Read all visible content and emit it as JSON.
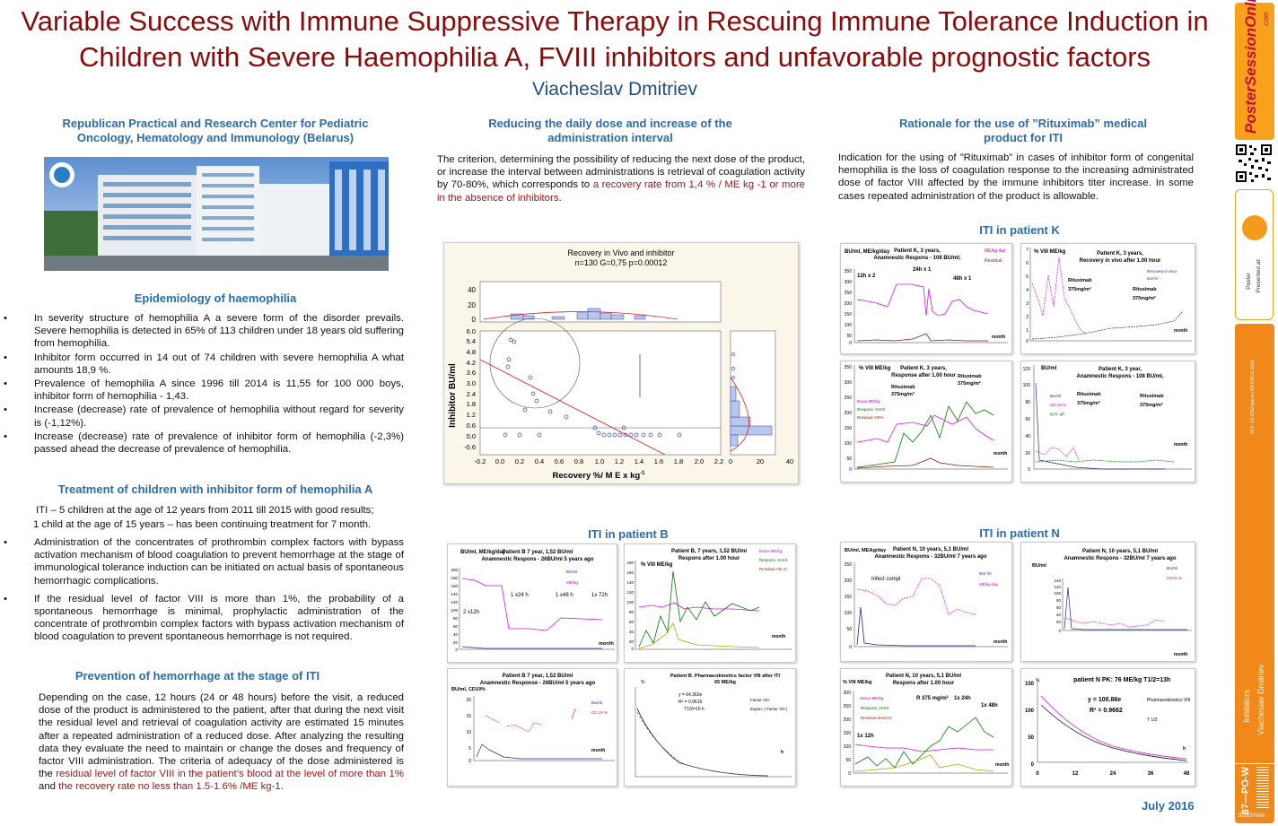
{
  "title_line1": "Variable Success with Immune Suppressive Therapy in Rescuing Immune Tolerance Induction in",
  "title_line2": "Children with Severe Haemophilia A, FVIII inhibitors and unfavorable prognostic factors",
  "author": "Viacheslav Dmitriev",
  "left": {
    "institute": "Republican Practical and Research Center for Pediatric Oncology, Hematology and Immunology (Belarus)",
    "epi_heading": "Epidemiology of haemophilia",
    "epi_items": [
      "In severity structure of hemophilia A a severe form of the disorder prevails. Severe hemophilia is detected in 65% of 113 children under 18 years old suffering from hemophilia.",
      "Inhibitor form occurred in 14 out of 74 children with severe hemophilia A what amounts 18,9 %.",
      "Prevalence of hemophilia A since 1996 till 2014 is 11,55 for 100 000 boys, inhibitor form of hemophilia - 1,43.",
      "Increase (decrease) rate of prevalence of hemophilia without regard for severity is (-1,12%).",
      "Increase (decrease) rate of prevalence of inhibitor form of hemophilia (-2,3%) passed ahead the decrease of prevalence of hemophilia."
    ],
    "treat_heading": "Treatment of children with inhibitor form of hemophilia A",
    "treat_line1": "ITI – 5 children at the age of 12 years from 2011 till 2015 with good results;",
    "treat_line2": "1 child  at the age of 15 years – has been continuing treatment for 7 month.",
    "treat_items": [
      "Administration of the concentrates of prothrombin complex factors with bypass activation mechanism of blood coagulation to prevent hemorrhage at the stage of immunological tolerance induction can be initiated on actual basis of spontaneous hemorrhagic complications.",
      "If the residual level of factor VIII is more than 1%, the probability of a spontaneous hemorrhage is minimal, prophylactic administration of the concentrate of prothrombin complex factors with bypass activation mechanism of blood coagulation to prevent spontaneous hemorrhage is not required."
    ],
    "prev_heading": "Prevention of hemorrhage at the stage of ITI",
    "prev_text": "Depending on the case, 12 hours (24 or 48 hours) before the visit, a reduced dose of the product is administered to the patient, after that during the next visit the residual level and retrieval of coagulation activity are estimated 15 minutes after a repeated administration of a reduced dose. After analyzing the resulting data they evaluate the need to maintain or change the doses and frequency of factor VIII administration. The criteria of adequacy of the dose administered is the ",
    "prev_red1": "residual level of factor VIII in the patient’s blood at the level of more than 1%",
    "prev_and": " and ",
    "prev_red2": "the recovery rate no less than 1.5-1.6% /ME kg-1",
    "prev_end": "."
  },
  "middle": {
    "heading": "Reducing the daily dose and increase of the administration interval",
    "text": "The criterion, determining the possibility of reducing the next dose of the product, or increase the interval between administrations is retrieval of coagulation activity by 70-80%, which corresponds to ",
    "text_red": "a recovery rate from 1,4 % / ME kg -1 or more in the absence of inhibitors",
    "text_end": ".",
    "iti_b": "ITI in patient B"
  },
  "right": {
    "heading": "Rationale for the use of ”Rituximab” medical product for ITI",
    "text": "Indication for the using of ”Rituximab” in cases of inhibitor form of congenital hemophilia is the loss of coagulation response to the increasing administrated dose of factor VIII affected by the immune inhibitors titer increase. In some cases repeated administration of the product is allowable.",
    "iti_k": "ITI in patient K",
    "iti_n": "ITI in patient N"
  },
  "scatter_chart": {
    "title": "Recovery in Vivo and inhibitor",
    "subtitle": "n=130   G=0,75   p=0.00012",
    "ylabel": "Inhibitor  BU/ml",
    "xlabel": "Recovery %/ M E x kg",
    "xlabel_sup": "-1",
    "xticks": [
      "-0.2",
      "0.0",
      "0.2",
      "0.4",
      "0.6",
      "0.8",
      "1.0",
      "1.2",
      "1.4",
      "1.6",
      "1.8",
      "2.0",
      "2.2"
    ],
    "yticks": [
      "6.0",
      "5.4",
      "4.8",
      "4.2",
      "3.6",
      "3.0",
      "2.4",
      "1.8",
      "1.2",
      "0.6",
      "0.0",
      "-0.6"
    ],
    "hist_ticks": [
      "40",
      "20",
      "0"
    ],
    "side_ticks": [
      "0",
      "20",
      "40"
    ]
  },
  "charts": {
    "k1": {
      "yunit": "BU/ml, МЕ/kg/day",
      "title1": "Patient K, 3 years,",
      "title2": "Anamnestic Respons - 108 BU/ml;",
      "legend": [
        "МЕ/kg day",
        "Residual"
      ],
      "ann": [
        "12h x 2",
        "24h x 1",
        "48h x 1"
      ],
      "yticks": [
        "350",
        "300",
        "250",
        "200",
        "150",
        "100",
        "50",
        "0"
      ],
      "xlabel": "month"
    },
    "k2": {
      "yunit": "% VIII МЕ/kg",
      "title1": "Patient K, 3 years,",
      "title2": "Recovery in vivo after 1.00 hour",
      "legend": [
        "Recovery in vivo",
        "BU/ml"
      ],
      "ann": [
        "Rituximab",
        "375mg/m²",
        "Rituximab",
        "375mg/m²"
      ],
      "yticks": [
        "7",
        "6",
        "5",
        "4",
        "3",
        "2",
        "1",
        "0"
      ],
      "xlabel": "month"
    },
    "k3": {
      "yunit": "% VIII МЕ/kg",
      "title1": "Patient K, 3 years,",
      "title2": "Response after 1.00 hour",
      "legend": [
        "Bolus МЕ/kg",
        "Respons, %VIII",
        "Residual VIII%"
      ],
      "ann": [
        "Rituximab",
        "375mg/m²",
        "Rituximab",
        "375mg/m²"
      ],
      "yticks": [
        "350",
        "300",
        "250",
        "200",
        "150",
        "100",
        "50",
        "0"
      ],
      "xlabel": "month"
    },
    "k4": {
      "yunit": "BU/ml",
      "title1": "Patient K, 3 year,",
      "title2": "Anamnestic Respons - 108 BU/ml,",
      "legend": [
        "BU/ml",
        "CD 19,%",
        "Ig G, g/l"
      ],
      "ann": [
        "Rituximab",
        "375mg/m²",
        "Rituximab",
        "375mg/m²"
      ],
      "yticks": [
        "120",
        "100",
        "80",
        "60",
        "40",
        "20",
        "0"
      ],
      "xlabel": "month"
    },
    "b1": {
      "yunit": "BU/ml, МЕ/kg/day",
      "title1": "Patient B 7 year, 1,52 BU/ml",
      "title2": "Anamnestic Respons - 26BU/ml 5 years ago",
      "legend": [
        "BU/ml",
        "МЕ/kg"
      ],
      "ann": [
        "2 x12h",
        "1 x24 h",
        "1 x48 h",
        "1x 72h"
      ],
      "yticks": [
        "200",
        "180",
        "160",
        "140",
        "120",
        "100",
        "80",
        "60",
        "40",
        "20",
        "0"
      ],
      "xlabel": "month"
    },
    "b2": {
      "yunit": "% VIII МЕ/kg",
      "title1": "Patient B, 7 years,  1,52 BU/ml",
      "title2": "Respons after 1.00 hour",
      "legend": [
        "Bolus МЕ/kg",
        "Respons, %VIII",
        "Residual VIII,%"
      ],
      "yticks": [
        "180",
        "160",
        "140",
        "120",
        "100",
        "80",
        "60",
        "40",
        "20",
        "0"
      ],
      "xlabel": "month"
    },
    "b3": {
      "yunit": "BU/ml, CD19%",
      "title1": "Patient B 7 year, 1,52 BU/ml",
      "title2": "Anamnestic Response - 26BU/ml 5 years ago",
      "legend": [
        "BU/ml",
        "CD 19 %"
      ],
      "yticks": [
        "20",
        "15",
        "10",
        "5",
        "0"
      ],
      "xlabel": "month"
    },
    "b4": {
      "yunit": "%",
      "title1": "Patient B. Pharmacokinetics factor VIII after ITI",
      "title2": "65 МЕ/kg",
      "eq": [
        "y = 64.362e",
        "R² = 0.9616",
        "T1/2=10 h"
      ],
      "legend": [
        "Factor  VIII",
        "Expon. ( Factor  VIII )"
      ],
      "xlabel": "h"
    },
    "n1": {
      "yunit": "BU/ml, МЕ/kg/day",
      "title1": "Patient N, 10 years, 5,1 BU/ml",
      "title2": "Anamnestic Respons - 32BU/ml 7 years ago",
      "legend": [
        "BU/ ml",
        "МЕ/kg day"
      ],
      "ann": [
        "Infect compl"
      ],
      "yticks": [
        "250",
        "200",
        "150",
        "100",
        "50",
        "0"
      ],
      "xlabel": "month"
    },
    "n2": {
      "yunit": "BU/ml",
      "title1": "Patient N, 10 years, 5,1 BU/ml",
      "title2": "Anamnestic Respons - 32BU/ml 7 years ago",
      "legend": [
        "BU/ml",
        "CD19,%"
      ],
      "yticks": [
        "140",
        "120",
        "100",
        "80",
        "60",
        "40",
        "20",
        "0"
      ],
      "xlabel": "month"
    },
    "n3": {
      "yunit": "% VIII МЕ/kg",
      "title1": "Patient N, 10 years, 5,1 BU/ml",
      "title2": "Respons after 1.00 hour",
      "legend": [
        "Bolus МЕ/kg",
        "Respons, %VIII",
        "Residual level (%"
      ],
      "ann": [
        "1x 12h",
        "R 375 mg/m²",
        "1x 24h",
        "1x 48h"
      ],
      "yticks": [
        "300",
        "250",
        "200",
        "150",
        "100",
        "50",
        "0"
      ],
      "xlabel": "month"
    },
    "n4": {
      "yunit": "%",
      "title1": "patient N  PK:  76 МЕ/kg   T1/2=13h",
      "eq": [
        "y = 100.86e",
        "R² = 0.9662"
      ],
      "legend": [
        "Pharmacokinetics VIII",
        "T 1/2"
      ],
      "yticks": [
        "150",
        "100",
        "50",
        "0"
      ],
      "xticks": [
        "0",
        "12",
        "24",
        "36",
        "48"
      ],
      "xlabel": "h"
    }
  },
  "sidebar": {
    "brand": "PosterSessionOnline",
    "brand_com": ".com",
    "presented": "Presented at:",
    "presented2": "Poster",
    "doi": "DOI: 10.3252/pso.eu.WFH2016.2016",
    "topic": "Inhibitors",
    "author": "Viacheslav Dmitriev",
    "code": "87—PO-W",
    "small": "910ЕНWM"
  },
  "date": "July 2016"
}
